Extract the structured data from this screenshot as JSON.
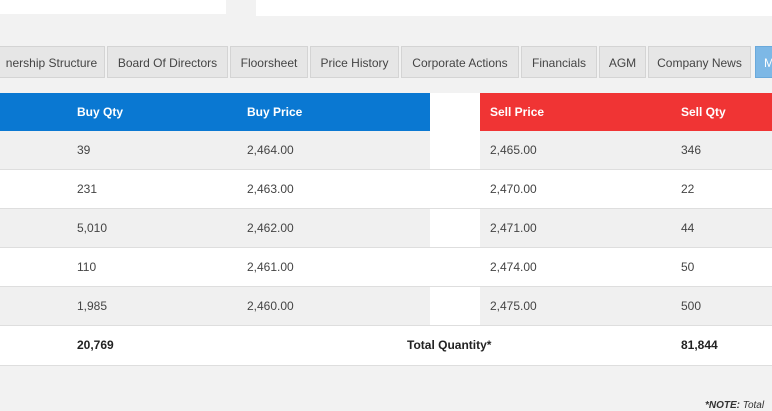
{
  "tabs": [
    {
      "label": "nership Structure"
    },
    {
      "label": "Board Of Directors"
    },
    {
      "label": "Floorsheet"
    },
    {
      "label": "Price History"
    },
    {
      "label": "Corporate Actions"
    },
    {
      "label": "Financials"
    },
    {
      "label": "AGM"
    },
    {
      "label": "Company News"
    },
    {
      "label": "M",
      "active": true
    }
  ],
  "market_depth": {
    "buy_headers": {
      "qty": "Buy Qty",
      "price": "Buy Price"
    },
    "sell_headers": {
      "price": "Sell Price",
      "qty": "Sell Qty"
    },
    "rows": [
      {
        "buy_qty": "39",
        "buy_price": "2,464.00",
        "sell_price": "2,465.00",
        "sell_qty": "346"
      },
      {
        "buy_qty": "231",
        "buy_price": "2,463.00",
        "sell_price": "2,470.00",
        "sell_qty": "22"
      },
      {
        "buy_qty": "5,010",
        "buy_price": "2,462.00",
        "sell_price": "2,471.00",
        "sell_qty": "44"
      },
      {
        "buy_qty": "110",
        "buy_price": "2,461.00",
        "sell_price": "2,474.00",
        "sell_qty": "50"
      },
      {
        "buy_qty": "1,985",
        "buy_price": "2,460.00",
        "sell_price": "2,475.00",
        "sell_qty": "500"
      }
    ],
    "totals": {
      "buy_qty": "20,769",
      "label": "Total Quantity*",
      "sell_qty": "81,844"
    }
  },
  "note": {
    "prefix": "*NOTE:",
    "text": " Total"
  },
  "colors": {
    "buy_header": "#0a78d2",
    "sell_header": "#f03434",
    "active_tab": "#7db8e6"
  }
}
